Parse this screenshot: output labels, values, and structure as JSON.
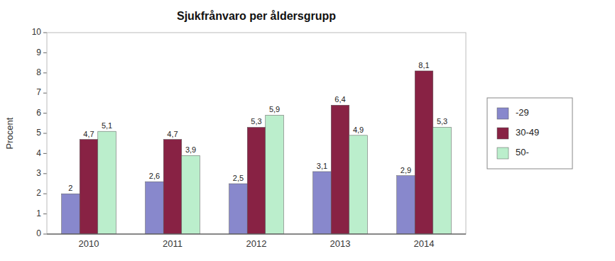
{
  "chart_data": {
    "type": "bar",
    "title": "Sjukfrånvaro  per åldersgrupp",
    "ylabel": "Procent",
    "categories": [
      "2010",
      "2011",
      "2012",
      "2013",
      "2014"
    ],
    "series": [
      {
        "name": "-29",
        "color": "#8888cc",
        "values": [
          2.0,
          2.6,
          2.5,
          3.1,
          2.9
        ],
        "value_labels": [
          "2",
          "2,6",
          "2,5",
          "3,1",
          "2,9"
        ]
      },
      {
        "name": "30-49",
        "color": "#882244",
        "values": [
          4.7,
          4.7,
          5.3,
          6.4,
          8.1
        ],
        "value_labels": [
          "4,7",
          "4,7",
          "5,3",
          "6,4",
          "8,1"
        ]
      },
      {
        "name": "50-",
        "color": "#bbeecc",
        "values": [
          5.1,
          3.9,
          5.9,
          4.9,
          5.3
        ],
        "value_labels": [
          "5,1",
          "3,9",
          "5,9",
          "4,9",
          "5,3"
        ]
      }
    ],
    "ylim": [
      0,
      10
    ],
    "yticks": [
      0,
      1,
      2,
      3,
      4,
      5,
      6,
      7,
      8,
      9,
      10
    ],
    "grid": false,
    "legend": "right",
    "data_labels": true
  }
}
